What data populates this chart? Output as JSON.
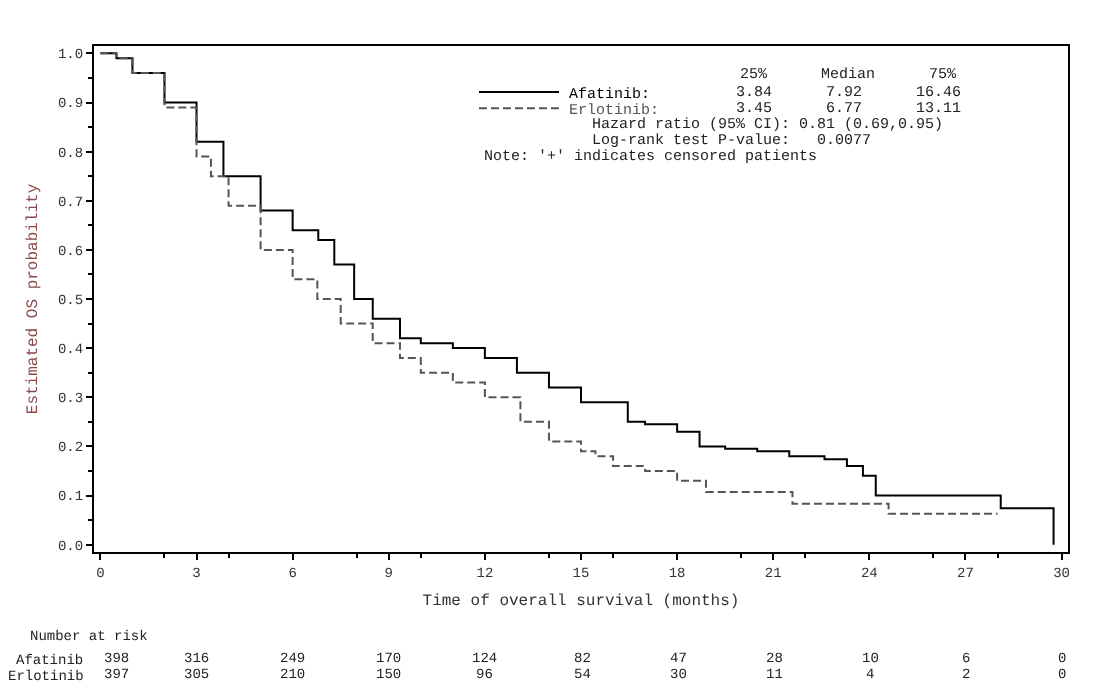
{
  "chart_data": {
    "type": "step",
    "xlabel": "Time of overall survival (months)",
    "ylabel": "Estimated OS probability",
    "x": [
      0,
      0.5,
      1,
      2,
      3,
      3.84,
      5,
      6,
      6.8,
      7.3,
      7.92,
      8.5,
      9.35,
      10,
      11,
      12,
      13,
      14,
      15,
      16.46,
      17,
      18,
      18.7,
      19.5,
      20.5,
      21.5,
      22.6,
      23.3,
      23.8,
      24.2,
      28.1,
      29.75
    ],
    "series": [
      {
        "name": "Afatinib:",
        "color": "#000000",
        "line_style": "solid",
        "values": [
          1,
          0.99,
          0.96,
          0.9,
          0.82,
          0.75,
          0.68,
          0.64,
          0.62,
          0.57,
          0.5,
          0.46,
          0.42,
          0.41,
          0.4,
          0.38,
          0.35,
          0.32,
          0.29,
          0.25,
          0.245,
          0.23,
          0.2,
          0.195,
          0.19,
          0.18,
          0.174,
          0.16,
          0.14,
          0.1,
          0.074,
          0
        ]
      },
      {
        "name": "Erlotinib:",
        "color": "#555555",
        "line_style": "dashed",
        "x": [
          0,
          0.5,
          1,
          2,
          3,
          3.45,
          4,
          5,
          6,
          6.77,
          7.5,
          8.5,
          9.35,
          10,
          11,
          12,
          13.11,
          14,
          15,
          15.45,
          16,
          17,
          18,
          18.9,
          20,
          21.6,
          24.6,
          28.0
        ],
        "values": [
          1,
          0.99,
          0.96,
          0.89,
          0.79,
          0.75,
          0.69,
          0.6,
          0.54,
          0.5,
          0.45,
          0.41,
          0.38,
          0.35,
          0.33,
          0.3,
          0.25,
          0.21,
          0.19,
          0.18,
          0.16,
          0.15,
          0.13,
          0.107,
          0.107,
          0.083,
          0.063,
          0.063
        ]
      }
    ],
    "xlim": [
      -0.2,
      30.2
    ],
    "xticks": [
      0,
      3,
      6,
      9,
      12,
      15,
      18,
      21,
      24,
      27,
      30
    ],
    "ylim": [
      -0.015,
      1.015
    ],
    "yticks": [
      {
        "value": 0,
        "label": "0.0"
      },
      {
        "value": 0.1,
        "label": "0.1"
      },
      {
        "value": 0.2,
        "label": "0.2"
      },
      {
        "value": 0.3,
        "label": "0.3"
      },
      {
        "value": 0.4,
        "label": "0.4"
      },
      {
        "value": 0.5,
        "label": "0.5"
      },
      {
        "value": 0.6,
        "label": "0.6"
      },
      {
        "value": 0.7,
        "label": "0.7"
      },
      {
        "value": 0.8,
        "label": "0.8"
      },
      {
        "value": 0.9,
        "label": "0.9"
      },
      {
        "value": 1,
        "label": "1.0"
      }
    ],
    "legend": "top right",
    "annotations": [
      "25%      Median      75%",
      "3.84      7.92      16.46",
      "3.45      6.77      13.11",
      "Hazard ratio (95% CI): 0.81 (0.69,0.95)",
      "Log-rank test P-value:   0.0077",
      "Note: '+' indicates censored patients",
      "Number at risk",
      "Afatinib 398 316 249 170 124 82 47 28 10 6 0",
      "Erlotinib 397 305 210 150 96 54 30 11 4 2 0"
    ]
  }
}
